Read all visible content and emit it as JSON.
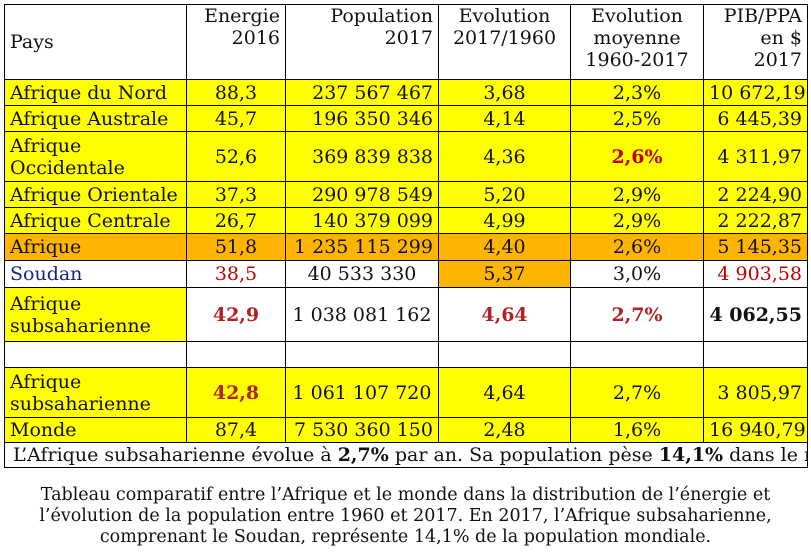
{
  "table": {
    "header": {
      "pays": "Pays",
      "energie": [
        "Energie",
        "2016"
      ],
      "population": [
        "Population",
        "2017"
      ],
      "evolution": [
        "Evolution",
        "2017/1960"
      ],
      "evolution_moyenne": [
        "Evolution",
        "moyenne",
        "1960-2017"
      ],
      "pib": [
        "PIB/PPA",
        "en $ 2017"
      ]
    },
    "rows": [
      {
        "pays": [
          "Afrique du Nord"
        ],
        "energie": "88,3",
        "population": "237 567 467",
        "evolution": "3,68",
        "evolution_moyenne": "2,3%",
        "pib": "10 672,19"
      },
      {
        "pays": [
          "Afrique Australe"
        ],
        "energie": "45,7",
        "population": "196 350 346",
        "evolution": "4,14",
        "evolution_moyenne": "2,5%",
        "pib": "6 445,39"
      },
      {
        "pays": [
          "Afrique",
          "Occidentale"
        ],
        "energie": "52,6",
        "population": "369 839 838",
        "evolution": "4,36",
        "evolution_moyenne": "2,6%",
        "pib": "4 311,97"
      },
      {
        "pays": [
          "Afrique Orientale"
        ],
        "energie": "37,3",
        "population": "290 978 549",
        "evolution": "5,20",
        "evolution_moyenne": "2,9%",
        "pib": "2 224,90"
      },
      {
        "pays": [
          "Afrique Centrale"
        ],
        "energie": "26,7",
        "population": "140 379 099",
        "evolution": "4,99",
        "evolution_moyenne": "2,9%",
        "pib": "2 222,87"
      },
      {
        "pays": [
          "Afrique"
        ],
        "energie": "51,8",
        "population": "1 235 115 299",
        "evolution": "4,40",
        "evolution_moyenne": "2,6%",
        "pib": "5 145,35"
      },
      {
        "pays": [
          "Soudan"
        ],
        "energie": "38,5",
        "population": "40 533 330",
        "evolution": "5,37",
        "evolution_moyenne": "3,0%",
        "pib": "4 903,58"
      },
      {
        "pays": [
          "Afrique",
          "subsaharienne"
        ],
        "energie": "42,9",
        "population": "1 038 081 162",
        "evolution": "4,64",
        "evolution_moyenne": "2,7%",
        "pib": "4 062,55"
      },
      {
        "pays": [
          ""
        ],
        "energie": "",
        "population": "",
        "evolution": "",
        "evolution_moyenne": "",
        "pib": ""
      },
      {
        "pays": [
          "Afrique",
          "subsaharienne"
        ],
        "energie": "42,8",
        "population": "1 061 107 720",
        "evolution": "4,64",
        "evolution_moyenne": "2,7%",
        "pib": "3 805,97"
      },
      {
        "pays": [
          "Monde"
        ],
        "energie": "87,4",
        "population": "7 530 360 150",
        "evolution": "2,48",
        "evolution_moyenne": "1,6%",
        "pib": "16 940,79"
      }
    ],
    "note": {
      "part1": "L’Afrique subsaharienne évolue à ",
      "value1": "2,7%",
      "part2": " par an. Sa population pèse ",
      "value2": "14,1%",
      "part3": " dans le monde"
    }
  },
  "caption": [
    "Tableau comparatif entre l’Afrique et le monde dans la distribution de l’énergie et",
    "l’évolution de la population entre 1960 et 2017. En 2017, l’Afrique subsaharienne,",
    "comprenant le Soudan, représente 14,1% de la population mondiale."
  ],
  "colors": {
    "row_yellow": "#ffff00",
    "row_orange": "#ffb400",
    "text_red": "#c00000",
    "text_darkred": "#b22222",
    "text_navy": "#1a237e"
  }
}
